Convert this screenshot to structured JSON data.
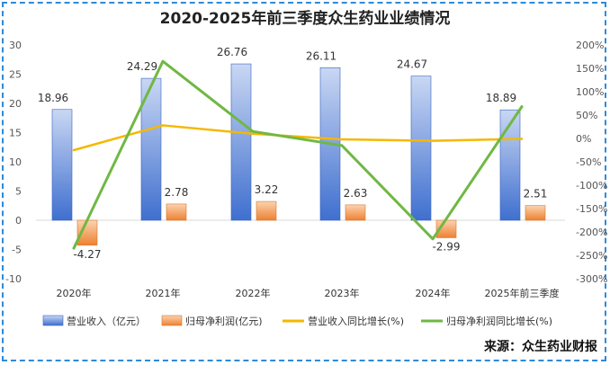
{
  "chart_data": {
    "type": "bar-line-combo",
    "title": "2020-2025年前三季度众生药业业绩情况",
    "categories": [
      "2020年",
      "2021年",
      "2022年",
      "2023年",
      "2024年",
      "2025年前三季度"
    ],
    "y_left": {
      "min": -10,
      "max": 30,
      "ticks": [
        "30",
        "25",
        "20",
        "15",
        "10",
        "5",
        "0",
        "-5",
        "-10"
      ]
    },
    "y_right": {
      "min": -300,
      "max": 200,
      "ticks": [
        "200%",
        "150%",
        "100%",
        "50%",
        "0%",
        "-50%",
        "-100%",
        "-150%",
        "-200%",
        "-250%",
        "-300%"
      ]
    },
    "series": [
      {
        "name": "营业收入（亿元）",
        "type": "bar",
        "axis": "left",
        "color": "#4a78d4",
        "values": [
          18.96,
          24.29,
          26.76,
          26.11,
          24.67,
          18.89
        ],
        "labels": [
          "18.96",
          "24.29",
          "26.76",
          "26.11",
          "24.67",
          "18.89"
        ]
      },
      {
        "name": "归母净利润(亿元)",
        "type": "bar",
        "axis": "left",
        "color": "#ef8a3c",
        "values": [
          -4.27,
          2.78,
          3.22,
          2.63,
          -2.99,
          2.51
        ],
        "labels": [
          "-4.27",
          "2.78",
          "3.22",
          "2.63",
          "-2.99",
          "2.51"
        ]
      },
      {
        "name": "营业收入同比增长(%)",
        "type": "line",
        "axis": "right",
        "color": "#f5b800",
        "values": [
          -25,
          28,
          10,
          -2,
          -5,
          -1
        ]
      },
      {
        "name": "归母净利润同比增长(%)",
        "type": "line",
        "axis": "right",
        "color": "#70b843",
        "values": [
          -235,
          165,
          15,
          -15,
          -215,
          68
        ]
      }
    ]
  },
  "source": "来源：众生药业财报"
}
